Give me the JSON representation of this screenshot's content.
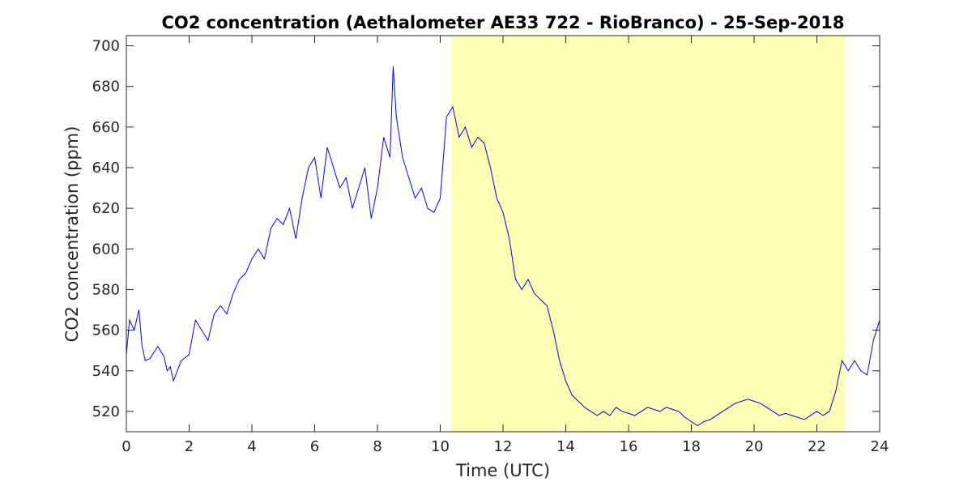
{
  "chart_data": {
    "type": "line",
    "title": "CO2 concentration (Aethalometer AE33 722 - RioBranco) - 25-Sep-2018",
    "xlabel": "Time (UTC)",
    "ylabel": "CO2 concentration (ppm)",
    "xlim": [
      0,
      24
    ],
    "ylim": [
      510,
      705
    ],
    "xticks": [
      0,
      2,
      4,
      6,
      8,
      10,
      12,
      14,
      16,
      18,
      20,
      22,
      24
    ],
    "yticks": [
      520,
      540,
      560,
      580,
      600,
      620,
      640,
      660,
      680,
      700
    ],
    "grid": false,
    "shaded_region": {
      "x_start": 10.35,
      "x_end": 22.9,
      "color": "#ffffb3"
    },
    "colors": {
      "line": "#0000ff",
      "axes": "#262626",
      "shade": "#ffffb3"
    },
    "series": [
      {
        "x": [
          0.0,
          0.1,
          0.25,
          0.4,
          0.5,
          0.6,
          0.75,
          1.0,
          1.2,
          1.3,
          1.4,
          1.5,
          1.75,
          2.0,
          2.2,
          2.4,
          2.6,
          2.8,
          3.0,
          3.2,
          3.4,
          3.6,
          3.8,
          4.0,
          4.2,
          4.4,
          4.6,
          4.8,
          5.0,
          5.2,
          5.4,
          5.6,
          5.8,
          6.0,
          6.2,
          6.4,
          6.6,
          6.8,
          7.0,
          7.2,
          7.4,
          7.6,
          7.8,
          8.0,
          8.2,
          8.4,
          8.5,
          8.6,
          8.8,
          9.0,
          9.2,
          9.4,
          9.6,
          9.8,
          10.0,
          10.2,
          10.4,
          10.6,
          10.8,
          11.0,
          11.2,
          11.4,
          11.6,
          11.8,
          12.0,
          12.2,
          12.4,
          12.6,
          12.8,
          13.0,
          13.2,
          13.4,
          13.6,
          13.8,
          14.0,
          14.2,
          14.4,
          14.6,
          14.8,
          15.0,
          15.2,
          15.4,
          15.6,
          15.8,
          16.0,
          16.2,
          16.4,
          16.6,
          16.8,
          17.0,
          17.2,
          17.4,
          17.6,
          17.8,
          18.0,
          18.2,
          18.4,
          18.6,
          18.8,
          19.0,
          19.2,
          19.4,
          19.6,
          19.8,
          20.0,
          20.2,
          20.4,
          20.6,
          20.8,
          21.0,
          21.2,
          21.4,
          21.6,
          21.8,
          22.0,
          22.2,
          22.4,
          22.6,
          22.8,
          23.0,
          23.2,
          23.4,
          23.6,
          23.8,
          24.0
        ],
        "values": [
          548,
          565,
          560,
          570,
          552,
          545,
          546,
          552,
          547,
          540,
          542,
          535,
          545,
          548,
          565,
          560,
          555,
          568,
          572,
          568,
          578,
          585,
          588,
          595,
          600,
          595,
          610,
          615,
          612,
          620,
          605,
          625,
          640,
          645,
          625,
          650,
          640,
          630,
          635,
          620,
          630,
          640,
          615,
          630,
          655,
          645,
          690,
          665,
          645,
          635,
          625,
          630,
          620,
          618,
          625,
          665,
          670,
          655,
          660,
          650,
          655,
          652,
          640,
          625,
          618,
          605,
          585,
          580,
          585,
          578,
          575,
          572,
          560,
          545,
          535,
          528,
          525,
          522,
          520,
          518,
          520,
          518,
          522,
          520,
          519,
          518,
          520,
          522,
          521,
          520,
          522,
          521,
          520,
          517,
          515,
          513,
          515,
          516,
          518,
          520,
          522,
          524,
          525,
          526,
          525,
          524,
          522,
          520,
          518,
          519,
          518,
          517,
          516,
          518,
          520,
          518,
          520,
          530,
          545,
          540,
          545,
          540,
          538,
          555,
          565
        ]
      }
    ]
  }
}
